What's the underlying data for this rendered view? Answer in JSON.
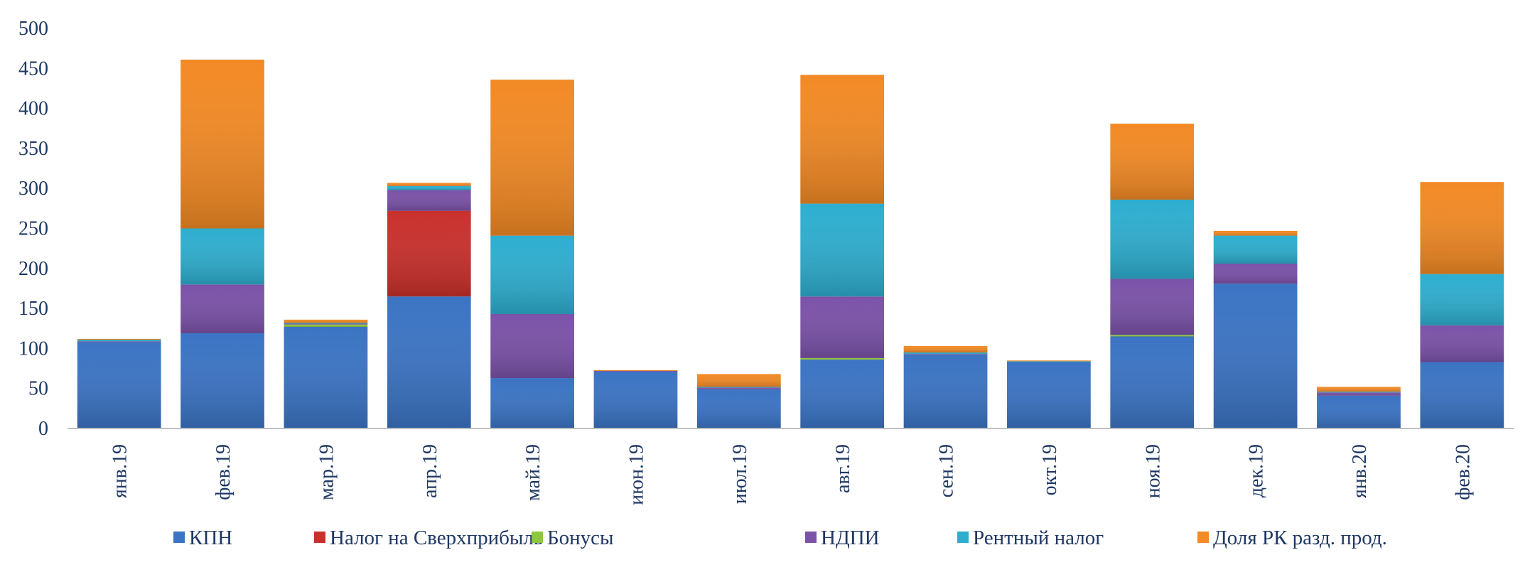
{
  "chart_data": {
    "type": "bar",
    "stacked": true,
    "title": "",
    "xlabel": "",
    "ylabel": "",
    "ylim": [
      0,
      500
    ],
    "yticks": [
      0,
      50,
      100,
      150,
      200,
      250,
      300,
      350,
      400,
      450,
      500
    ],
    "grid": false,
    "legend_position": "bottom",
    "categories": [
      "янв.19",
      "фев.19",
      "мар.19",
      "апр.19",
      "май.19",
      "июн.19",
      "июл.19",
      "авг.19",
      "сен.19",
      "окт.19",
      "ноя.19",
      "дек.19",
      "янв.20",
      "фев.20"
    ],
    "series": [
      {
        "name": "КПН",
        "color": "#3b74c4",
        "values": [
          108,
          119,
          127,
          165,
          63,
          71,
          49,
          86,
          92,
          83,
          115,
          181,
          41,
          83
        ]
      },
      {
        "name": "Налог на Сверхприбыль",
        "color": "#c9302c",
        "values": [
          0,
          0,
          0,
          107,
          0,
          0,
          0,
          0,
          0,
          0,
          0,
          0,
          0,
          0
        ]
      },
      {
        "name": "Бонусы",
        "color": "#8dc63f",
        "values": [
          0,
          0,
          3,
          0,
          0,
          0,
          0,
          2,
          0,
          0,
          2,
          0,
          0,
          0
        ]
      },
      {
        "name": "НДПИ",
        "color": "#7b52a8",
        "values": [
          1,
          61,
          1,
          26,
          80,
          1,
          2,
          77,
          1,
          0,
          70,
          25,
          4,
          46
        ]
      },
      {
        "name": "Рентный налог",
        "color": "#2eaecf",
        "values": [
          2,
          70,
          1,
          5,
          98,
          0,
          1,
          116,
          2,
          1,
          99,
          35,
          1,
          64
        ]
      },
      {
        "name": "Доля РК разд. прод.",
        "color": "#f28a25",
        "values": [
          1,
          211,
          4,
          4,
          195,
          1,
          16,
          161,
          8,
          1,
          95,
          6,
          6,
          115
        ]
      }
    ]
  }
}
